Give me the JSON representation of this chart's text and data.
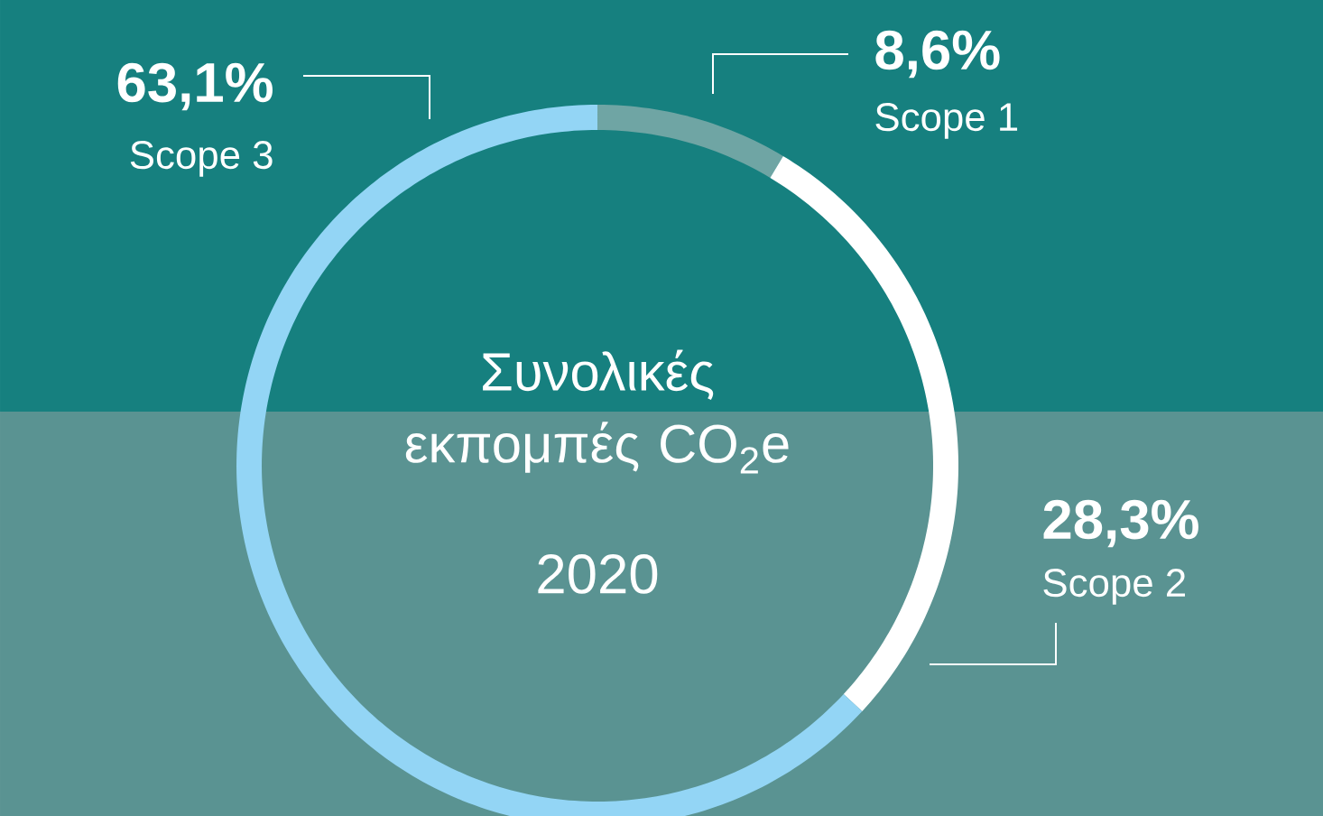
{
  "chart_data": {
    "type": "donut",
    "title": "Συνολικές εκπομπές CO$_{2}$e",
    "subtitle": "2020",
    "categories": [
      "Scope 1",
      "Scope 2",
      "Scope 3"
    ],
    "values": [
      8.6,
      28.3,
      63.1
    ],
    "value_labels": [
      "8,6%",
      "28,3%",
      "63,1%"
    ],
    "colors": [
      "#6fa5a4",
      "#ffffff",
      "#93d5f5"
    ]
  }
}
